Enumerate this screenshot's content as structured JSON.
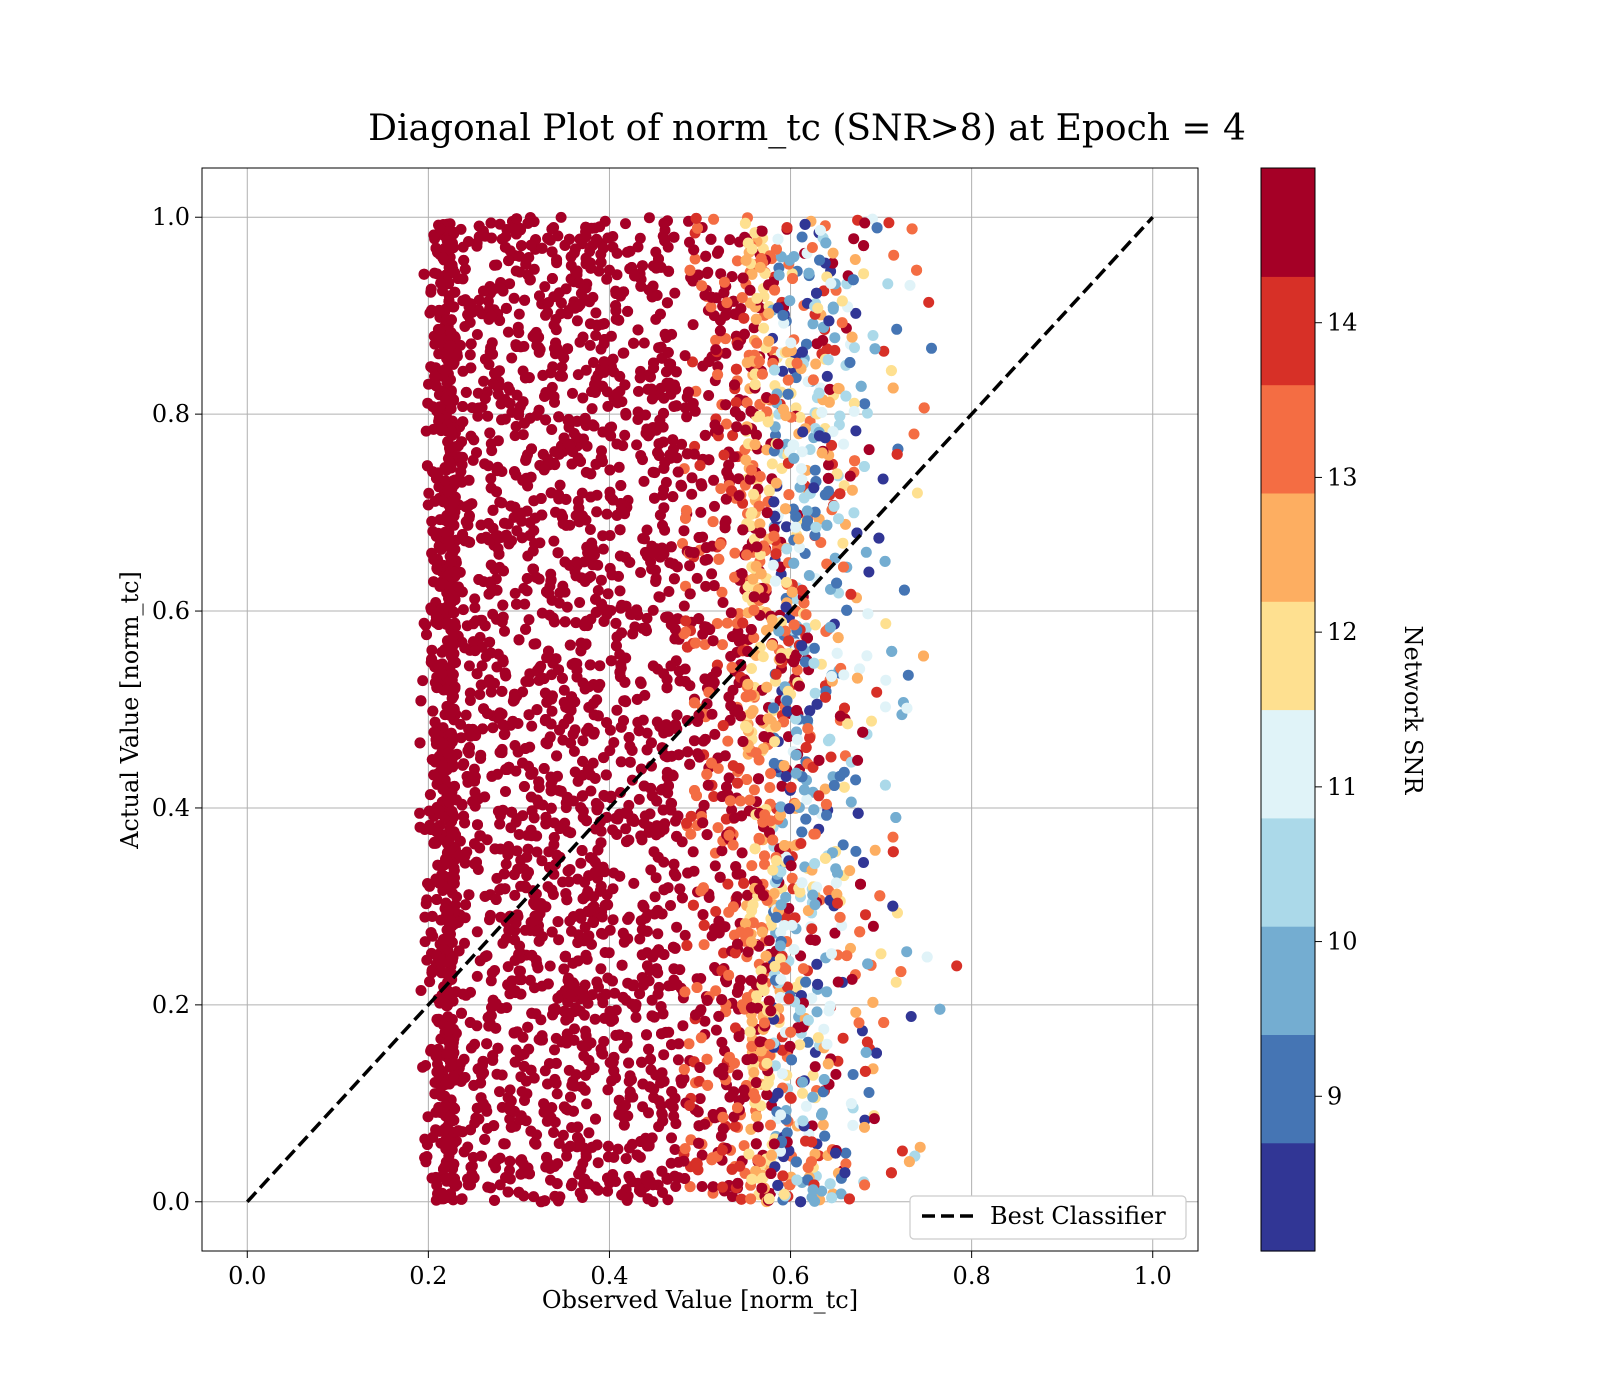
{
  "chart_data": {
    "type": "scatter",
    "title": "Diagonal Plot of norm_tc (SNR>8) at Epoch = 4",
    "xlabel": "Observed Value [norm_tc]",
    "ylabel": "Actual Value [norm_tc]",
    "xlim": [
      -0.05,
      1.05
    ],
    "ylim": [
      -0.05,
      1.05
    ],
    "xticks": [
      "0.0",
      "0.2",
      "0.4",
      "0.6",
      "0.8",
      "1.0"
    ],
    "yticks": [
      "0.0",
      "0.2",
      "0.4",
      "0.6",
      "0.8",
      "1.0"
    ],
    "grid": true,
    "legend": {
      "placement": "lower-right",
      "label": "Best Classifier",
      "line_style": "dashed",
      "color": "#000000"
    },
    "reference_line": {
      "name": "Best Classifier",
      "x": [
        0.0,
        1.0
      ],
      "y": [
        0.0,
        1.0
      ]
    },
    "colorbar": {
      "label": "Network SNR",
      "range": [
        8.0,
        15.0
      ],
      "ticks": [
        "9",
        "10",
        "11",
        "12",
        "13",
        "14"
      ],
      "colors": [
        "#313695",
        "#4575b4",
        "#74add1",
        "#abd9e9",
        "#e0f3f8",
        "#fee090",
        "#fdae61",
        "#f46d43",
        "#d73027",
        "#a50026"
      ]
    },
    "point_distribution": {
      "x_range": [
        0.19,
        0.81
      ],
      "y_range": [
        0.0,
        1.0
      ],
      "dense_core_x": [
        0.23,
        0.55
      ],
      "dominant_snr": 15,
      "approx_points": 6000
    }
  }
}
